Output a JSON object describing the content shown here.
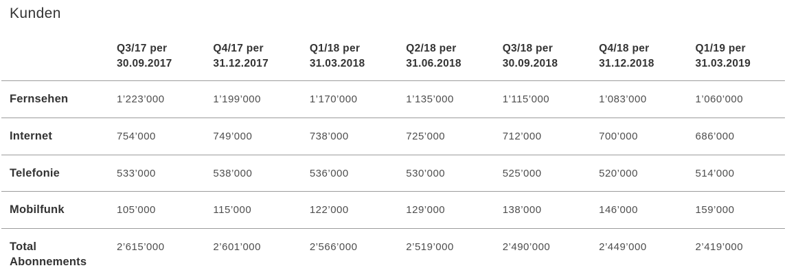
{
  "title": "Kunden",
  "table": {
    "columns": [
      "Q3/17 per\n30.09.2017",
      "Q4/17 per\n31.12.2017",
      "Q1/18 per\n31.03.2018",
      "Q2/18 per\n31.06.2018",
      "Q3/18 per\n30.09.2018",
      "Q4/18 per\n31.12.2018",
      "Q1/19 per\n31.03.2019"
    ],
    "rows": [
      {
        "label": "Fernsehen",
        "values": [
          "1’223’000",
          "1’199’000",
          "1’170’000",
          "1’135’000",
          "1’115’000",
          "1’083’000",
          "1’060’000"
        ]
      },
      {
        "label": "Internet",
        "values": [
          "754’000",
          "749’000",
          "738’000",
          "725’000",
          "712’000",
          "700’000",
          "686’000"
        ]
      },
      {
        "label": "Telefonie",
        "values": [
          "533’000",
          "538’000",
          "536’000",
          "530’000",
          "525’000",
          "520’000",
          "514’000"
        ]
      },
      {
        "label": "Mobilfunk",
        "values": [
          "105’000",
          "115’000",
          "122’000",
          "129’000",
          "138’000",
          "146’000",
          "159’000"
        ]
      },
      {
        "label": "Total Abonnements",
        "values": [
          "2’615’000",
          "2’601’000",
          "2’566’000",
          "2’519’000",
          "2’490’000",
          "2’449’000",
          "2’419’000"
        ]
      }
    ]
  },
  "chart_data": {
    "type": "table",
    "title": "Kunden",
    "categories": [
      "Q3/17 per 30.09.2017",
      "Q4/17 per 31.12.2017",
      "Q1/18 per 31.03.2018",
      "Q2/18 per 31.06.2018",
      "Q3/18 per 30.09.2018",
      "Q4/18 per 31.12.2018",
      "Q1/19 per 31.03.2019"
    ],
    "series": [
      {
        "name": "Fernsehen",
        "values": [
          1223000,
          1199000,
          1170000,
          1135000,
          1115000,
          1083000,
          1060000
        ]
      },
      {
        "name": "Internet",
        "values": [
          754000,
          749000,
          738000,
          725000,
          712000,
          700000,
          686000
        ]
      },
      {
        "name": "Telefonie",
        "values": [
          533000,
          538000,
          536000,
          530000,
          525000,
          520000,
          514000
        ]
      },
      {
        "name": "Mobilfunk",
        "values": [
          105000,
          115000,
          122000,
          129000,
          138000,
          146000,
          159000
        ]
      },
      {
        "name": "Total Abonnements",
        "values": [
          2615000,
          2601000,
          2566000,
          2519000,
          2490000,
          2449000,
          2419000
        ]
      }
    ]
  },
  "colors": {
    "heading_text": "#333333",
    "value_text": "#4d4d4d",
    "row_separator": "#9b9b9b",
    "bottom_border": "#7d7d7d",
    "background": "#ffffff"
  }
}
